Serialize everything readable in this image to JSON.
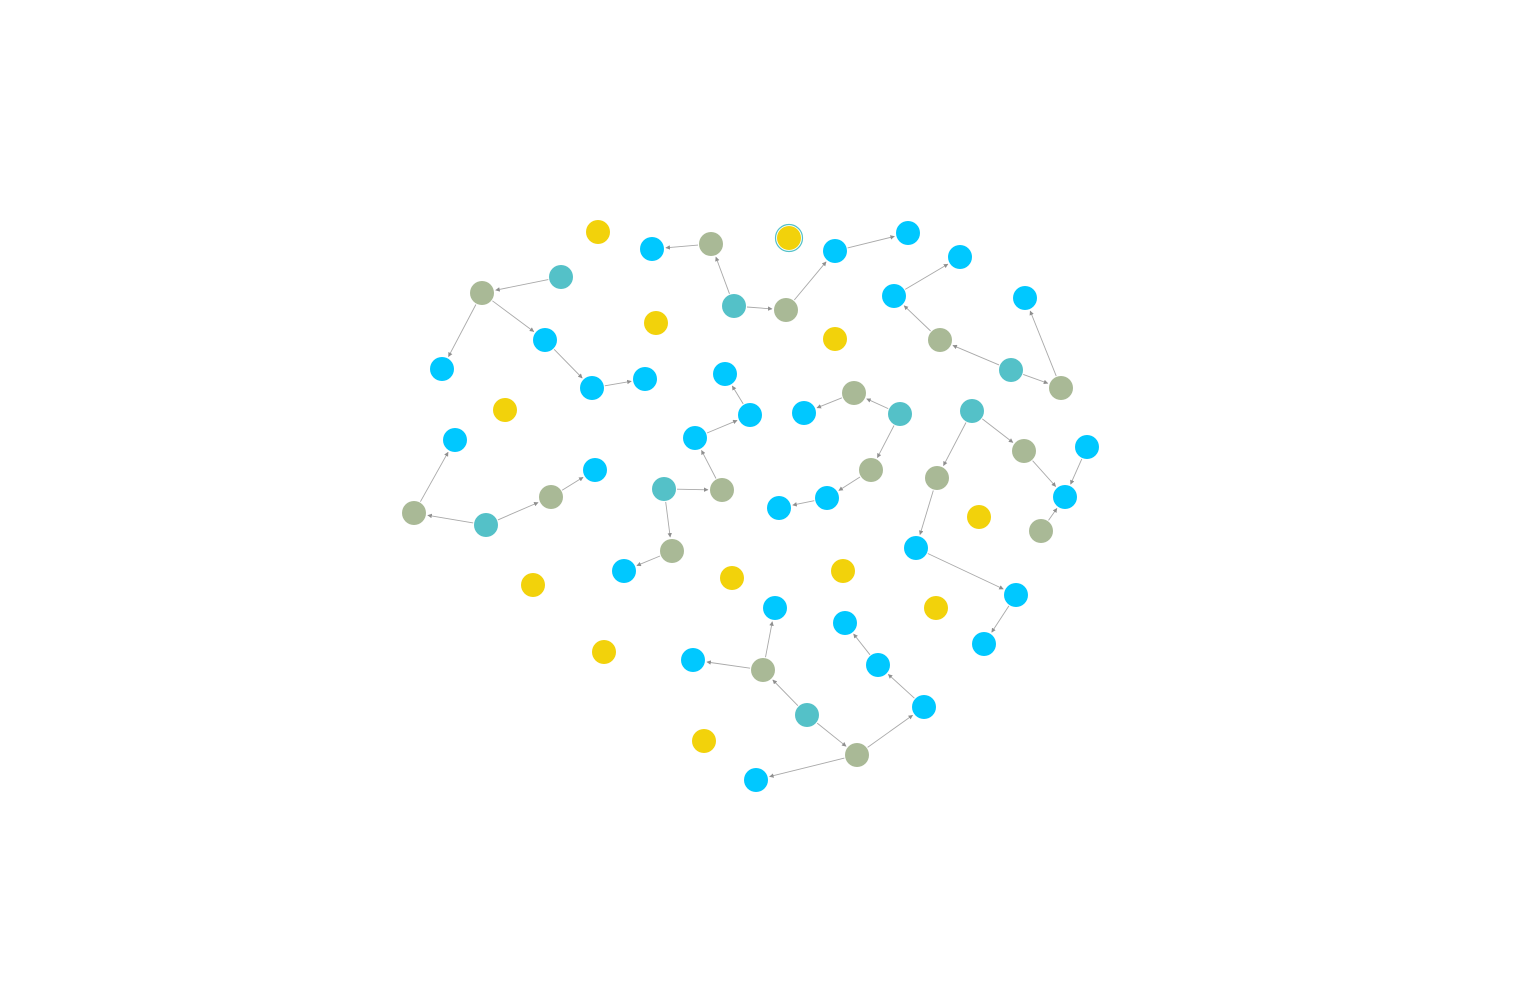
{
  "graph": {
    "selected_node": "n_y4",
    "node_types": {
      "blue": "#00c8ff",
      "sage": "#a9b996",
      "teal": "#54c1c8",
      "yellow": "#f2d20b"
    },
    "selection_ring_color": "#54c1c8",
    "edge_color": "#a9a9a9"
  }
}
